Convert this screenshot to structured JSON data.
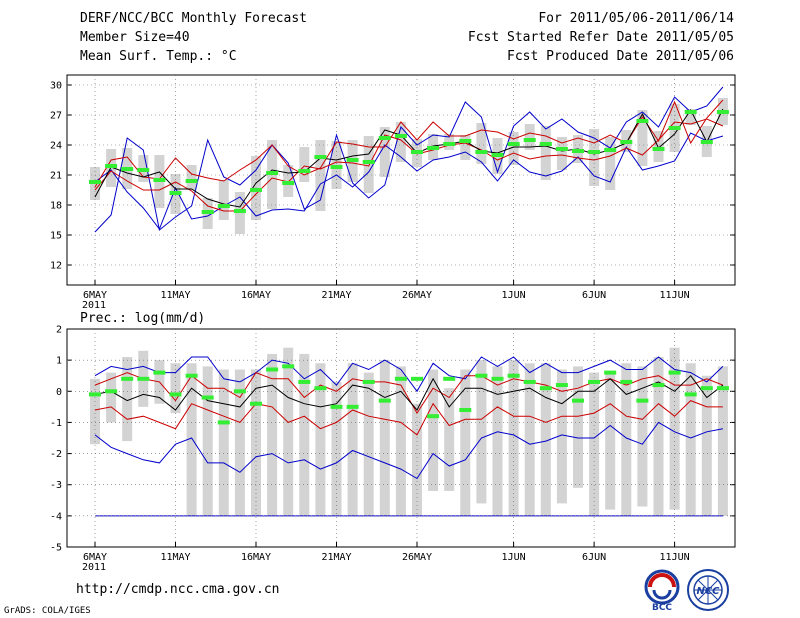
{
  "header": {
    "left": [
      "DERF/NCC/BCC Monthly Forecast",
      "Member Size=40",
      "Mean Surf. Temp.: °C"
    ],
    "right": [
      "For 2011/05/06-2011/06/14",
      "Fcst Started Refer Date 2011/05/05",
      "Fcst Produced Date 2011/05/06"
    ]
  },
  "footer": {
    "url": "http://cmdp.ncc.cma.gov.cn",
    "credit": "GrADS: COLA/IGES"
  },
  "logos": {
    "bcc": "BCC",
    "ncc": "NCC"
  },
  "colors": {
    "envelope": "#0000cc",
    "spread": "#cc0000",
    "mean": "#000000",
    "median": "#33ee33",
    "bar": "#d3d3d3"
  },
  "chart_data": [
    {
      "type": "box-band",
      "title": "Mean Surf. Temp.: °C",
      "x_ticks": [
        "6MAY\n2011",
        "11MAY",
        "16MAY",
        "21MAY",
        "26MAY",
        "1JUN",
        "6JUN",
        "11JUN"
      ],
      "x_tick_days": [
        0,
        5,
        10,
        15,
        20,
        26,
        31,
        36
      ],
      "days": 40,
      "ylim": [
        10,
        31
      ],
      "yticks": [
        12,
        15,
        18,
        21,
        24,
        27,
        30
      ],
      "series": [
        {
          "name": "max",
          "values": [
            15.3,
            17.0,
            24.7,
            23.5,
            15.5,
            16.8,
            17.9,
            24.5,
            20.8,
            20.0,
            21.5,
            24.0,
            22.2,
            17.6,
            18.5,
            25.0,
            20.2,
            18.7,
            20.0,
            25.8,
            24.0,
            25.0,
            24.8,
            28.3,
            26.8,
            21.3,
            25.9,
            27.3,
            25.6,
            26.6,
            25.3,
            24.7,
            23.7,
            26.3,
            27.3,
            25.8,
            28.8,
            27.3,
            27.9,
            29.8
          ]
        },
        {
          "name": "upper",
          "values": [
            19.8,
            22.5,
            22.8,
            20.8,
            20.6,
            22.7,
            21.1,
            20.7,
            20.4,
            21.5,
            22.5,
            24.0,
            21.9,
            21.0,
            21.7,
            24.3,
            24.1,
            23.8,
            23.8,
            26.3,
            24.5,
            26.3,
            24.9,
            24.9,
            25.5,
            25.3,
            24.6,
            25.2,
            24.9,
            24.2,
            24.7,
            24.2,
            25.0,
            24.2,
            26.8,
            24.4,
            28.3,
            24.2,
            26.7,
            28.5
          ]
        },
        {
          "name": "mean",
          "values": [
            18.8,
            21.8,
            21.2,
            20.8,
            21.3,
            19.6,
            19.6,
            18.6,
            18.1,
            17.8,
            20.2,
            21.5,
            21.2,
            21.3,
            22.7,
            22.5,
            22.9,
            23.1,
            25.5,
            25.0,
            23.2,
            23.9,
            24.1,
            24.4,
            23.4,
            23.2,
            23.8,
            23.8,
            23.9,
            23.4,
            23.6,
            23.1,
            23.5,
            24.2,
            27.1,
            23.7,
            25.1,
            27.5,
            24.3,
            27.6
          ]
        },
        {
          "name": "lower",
          "values": [
            19.5,
            21.4,
            20.4,
            19.5,
            19.5,
            20.3,
            19.4,
            17.9,
            17.4,
            17.4,
            19.1,
            20.7,
            20.3,
            21.9,
            21.6,
            22.3,
            22.2,
            21.9,
            25.0,
            24.5,
            23.1,
            23.5,
            24.0,
            24.2,
            23.5,
            22.5,
            23.2,
            22.6,
            22.9,
            23.0,
            22.7,
            22.5,
            22.9,
            23.7,
            23.0,
            24.5,
            26.3,
            26.1,
            26.6,
            25.9
          ]
        },
        {
          "name": "min",
          "values": [
            20.3,
            21.5,
            19.3,
            17.7,
            15.6,
            19.7,
            16.6,
            16.9,
            17.9,
            18.8,
            16.9,
            17.5,
            17.6,
            17.4,
            20.1,
            21.0,
            19.8,
            21.3,
            24.0,
            22.8,
            21.4,
            22.5,
            22.8,
            23.3,
            22.3,
            20.4,
            22.5,
            21.3,
            20.9,
            21.4,
            22.8,
            20.9,
            20.3,
            23.8,
            21.5,
            21.9,
            22.4,
            25.2,
            24.4,
            24.9
          ]
        },
        {
          "name": "median",
          "values": [
            20.3,
            21.9,
            21.6,
            21.5,
            20.5,
            19.2,
            20.4,
            17.3,
            17.9,
            17.4,
            19.5,
            21.2,
            20.2,
            21.4,
            22.8,
            21.8,
            22.5,
            22.3,
            24.7,
            24.9,
            23.3,
            23.7,
            24.1,
            24.4,
            23.3,
            23.0,
            24.1,
            24.5,
            24.1,
            23.6,
            23.4,
            23.3,
            23.5,
            24.3,
            26.4,
            23.6,
            25.7,
            27.3,
            24.3,
            27.3
          ]
        },
        {
          "name": "bar_low",
          "values": [
            18.5,
            19.8,
            19.6,
            20.3,
            17.7,
            17.1,
            19.5,
            15.6,
            16.5,
            15.1,
            16.5,
            17.6,
            18.8,
            20.3,
            17.4,
            19.6,
            20.3,
            19.2,
            20.8,
            22.3,
            21.8,
            22.5,
            23.5,
            22.5,
            22.1,
            21.1,
            22.0,
            23.5,
            20.5,
            21.5,
            22.2,
            19.9,
            19.5,
            23.3,
            21.9,
            22.3,
            23.3,
            26.0,
            22.8,
            26.0
          ]
        },
        {
          "name": "bar_high",
          "values": [
            21.8,
            23.6,
            23.7,
            23.0,
            23.0,
            21.1,
            22.0,
            18.7,
            20.5,
            19.3,
            22.9,
            24.5,
            22.0,
            23.8,
            24.5,
            24.4,
            24.5,
            24.9,
            25.8,
            26.3,
            24.6,
            25.1,
            25.1,
            25.0,
            26.2,
            24.7,
            25.3,
            26.1,
            25.9,
            24.8,
            25.0,
            25.6,
            24.8,
            25.5,
            27.5,
            25.4,
            28.1,
            27.6,
            25.9,
            28.7
          ]
        }
      ]
    },
    {
      "type": "box-band",
      "title": "Prec.: log(mm/d)",
      "x_ticks": [
        "6MAY\n2011",
        "11MAY",
        "16MAY",
        "21MAY",
        "26MAY",
        "1JUN",
        "6JUN",
        "11JUN"
      ],
      "x_tick_days": [
        0,
        5,
        10,
        15,
        20,
        26,
        31,
        36
      ],
      "days": 40,
      "ylim": [
        -5,
        2
      ],
      "yticks": [
        -5,
        -4,
        -3,
        -2,
        -1,
        0,
        1,
        2
      ],
      "baseline": -4,
      "series": [
        {
          "name": "max",
          "values": [
            0.5,
            0.8,
            0.7,
            0.8,
            0.6,
            0.6,
            1.1,
            1.1,
            0.4,
            0.3,
            0.6,
            1.0,
            0.9,
            0.4,
            0.7,
            0.2,
            0.9,
            0.7,
            1.0,
            0.7,
            0.0,
            0.9,
            0.5,
            0.4,
            1.1,
            0.8,
            1.1,
            0.6,
            0.9,
            0.6,
            0.6,
            0.8,
            1.0,
            0.7,
            0.7,
            1.1,
            0.7,
            0.6,
            0.3,
            0.8
          ]
        },
        {
          "name": "upper",
          "values": [
            0.2,
            0.4,
            0.6,
            0.4,
            0.3,
            -0.3,
            0.5,
            0.1,
            0.1,
            -0.2,
            0.6,
            0.4,
            0.4,
            -0.2,
            0.2,
            0.0,
            0.4,
            0.3,
            0.3,
            0.2,
            -0.7,
            0.1,
            -0.2,
            0.5,
            0.5,
            0.2,
            0.4,
            0.3,
            0.2,
            0.0,
            0.1,
            0.3,
            0.4,
            0.2,
            0.4,
            0.5,
            0.2,
            0.2,
            0.4,
            0.2
          ]
        },
        {
          "name": "mean",
          "values": [
            -0.1,
            0.0,
            -0.3,
            -0.1,
            -0.2,
            -0.6,
            0.1,
            -0.3,
            -0.4,
            -0.5,
            0.1,
            0.2,
            -0.2,
            -0.4,
            -0.5,
            -0.4,
            0.2,
            0.1,
            -0.2,
            0.0,
            -0.6,
            0.4,
            -0.5,
            0.1,
            0.1,
            -0.1,
            0.0,
            0.1,
            -0.2,
            -0.4,
            0.0,
            0.0,
            0.4,
            -0.1,
            0.1,
            0.3,
            0.0,
            0.5,
            -0.2,
            0.2
          ]
        },
        {
          "name": "lower",
          "values": [
            -0.6,
            -0.5,
            -0.9,
            -0.8,
            -1.0,
            -1.2,
            -0.4,
            -0.6,
            -0.8,
            -1.0,
            -0.4,
            -0.5,
            -1.0,
            -0.8,
            -1.2,
            -1.0,
            -0.6,
            -0.8,
            -0.9,
            -1.0,
            -1.4,
            -0.4,
            -1.1,
            -0.9,
            -0.9,
            -0.5,
            -0.8,
            -0.8,
            -1.0,
            -0.8,
            -0.8,
            -0.7,
            -0.4,
            -0.8,
            -0.9,
            -0.4,
            -0.8,
            -0.3,
            -0.5,
            -0.5
          ]
        },
        {
          "name": "min",
          "values": [
            -1.4,
            -1.8,
            -2.0,
            -2.2,
            -2.3,
            -1.7,
            -1.5,
            -2.3,
            -2.3,
            -2.6,
            -2.1,
            -2.0,
            -2.3,
            -2.2,
            -2.5,
            -2.3,
            -1.9,
            -2.1,
            -2.3,
            -2.5,
            -2.8,
            -2.0,
            -2.4,
            -2.2,
            -1.5,
            -1.3,
            -1.4,
            -1.7,
            -1.6,
            -1.4,
            -1.5,
            -1.5,
            -1.1,
            -1.5,
            -1.7,
            -1.0,
            -1.3,
            -1.5,
            -1.3,
            -1.2
          ]
        },
        {
          "name": "median",
          "values": [
            -0.1,
            0.0,
            0.4,
            0.4,
            0.6,
            -0.1,
            0.5,
            -0.2,
            -1.0,
            0.0,
            -0.4,
            0.7,
            0.8,
            0.3,
            0.1,
            -0.5,
            -0.5,
            0.3,
            -0.3,
            0.4,
            0.4,
            -0.8,
            0.4,
            -0.6,
            0.5,
            0.4,
            0.5,
            0.3,
            0.1,
            0.2,
            -0.3,
            0.3,
            0.6,
            0.3,
            -0.3,
            0.2,
            0.6,
            -0.1,
            0.1,
            0.1
          ]
        },
        {
          "name": "bar_low",
          "values": [
            -1.7,
            -1.0,
            -1.6,
            -0.5,
            -0.4,
            -0.7,
            -4.0,
            -4.0,
            -4.0,
            -4.0,
            -4.0,
            -4.0,
            -4.0,
            -4.0,
            -4.0,
            -4.0,
            -4.0,
            -4.0,
            -4.0,
            -4.0,
            -4.0,
            -3.2,
            -3.2,
            -4.0,
            -3.6,
            -4.0,
            -4.0,
            -4.0,
            -4.0,
            -3.6,
            -3.1,
            -4.0,
            -3.8,
            -4.0,
            -3.7,
            -4.0,
            -3.8,
            -4.0,
            -4.0,
            -4.0
          ]
        },
        {
          "name": "bar_high",
          "values": [
            0.4,
            0.6,
            1.1,
            1.3,
            1.0,
            0.9,
            0.9,
            0.8,
            0.7,
            0.7,
            0.7,
            1.2,
            1.4,
            1.2,
            0.9,
            0.3,
            0.9,
            0.6,
            1.0,
            0.8,
            -0.4,
            0.7,
            0.1,
            0.7,
            1.0,
            0.8,
            1.0,
            0.9,
            0.9,
            0.7,
            0.8,
            0.6,
            0.6,
            0.9,
            0.8,
            1.1,
            1.4,
            0.9,
            0.5,
            0.8
          ]
        }
      ]
    }
  ]
}
